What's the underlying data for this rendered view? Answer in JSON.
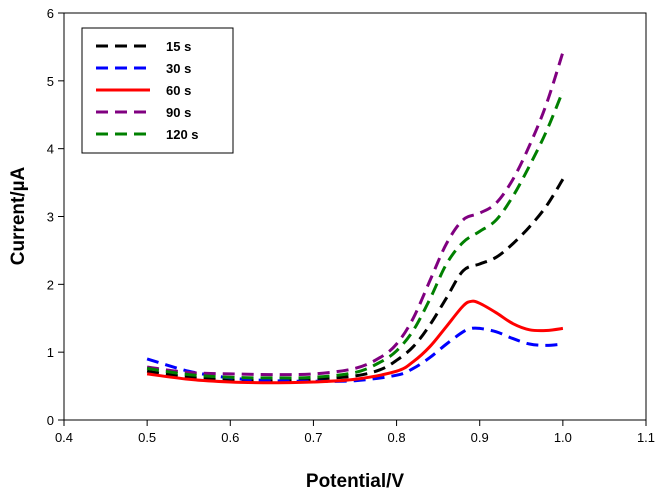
{
  "chart_data": {
    "type": "line",
    "title": "",
    "xlabel": "Potential/V",
    "ylabel": "Current/µA",
    "xlim": [
      0.4,
      1.1
    ],
    "ylim": [
      0,
      6
    ],
    "xticks": [
      "0.4",
      "0.5",
      "0.6",
      "0.7",
      "0.8",
      "0.9",
      "1.0",
      "1.1"
    ],
    "yticks": [
      "0",
      "1",
      "2",
      "3",
      "4",
      "5",
      "6"
    ],
    "grid": false,
    "legend_position": "top-left",
    "series": [
      {
        "name": "15 s",
        "color": "#000000",
        "dash": "dashed",
        "x": [
          0.5,
          0.55,
          0.6,
          0.65,
          0.7,
          0.75,
          0.78,
          0.8,
          0.82,
          0.84,
          0.86,
          0.88,
          0.9,
          0.92,
          0.94,
          0.96,
          0.98,
          1.0
        ],
        "y": [
          0.72,
          0.63,
          0.59,
          0.58,
          0.6,
          0.65,
          0.74,
          0.88,
          1.08,
          1.4,
          1.8,
          2.2,
          2.3,
          2.4,
          2.6,
          2.85,
          3.15,
          3.55
        ]
      },
      {
        "name": "30 s",
        "color": "#0000ff",
        "dash": "dashed",
        "x": [
          0.5,
          0.55,
          0.6,
          0.65,
          0.7,
          0.75,
          0.8,
          0.82,
          0.84,
          0.86,
          0.88,
          0.89,
          0.9,
          0.92,
          0.94,
          0.96,
          0.98,
          1.0
        ],
        "y": [
          0.9,
          0.72,
          0.62,
          0.58,
          0.57,
          0.58,
          0.66,
          0.76,
          0.92,
          1.12,
          1.3,
          1.35,
          1.35,
          1.3,
          1.2,
          1.12,
          1.1,
          1.12
        ]
      },
      {
        "name": "60 s",
        "color": "#ff0000",
        "dash": "solid",
        "x": [
          0.5,
          0.55,
          0.6,
          0.65,
          0.7,
          0.75,
          0.8,
          0.82,
          0.84,
          0.86,
          0.88,
          0.89,
          0.9,
          0.92,
          0.94,
          0.96,
          0.98,
          1.0
        ],
        "y": [
          0.68,
          0.6,
          0.56,
          0.55,
          0.56,
          0.6,
          0.72,
          0.86,
          1.08,
          1.38,
          1.68,
          1.75,
          1.72,
          1.58,
          1.42,
          1.33,
          1.32,
          1.35
        ]
      },
      {
        "name": "90 s",
        "color": "#800080",
        "dash": "dashed",
        "x": [
          0.5,
          0.55,
          0.6,
          0.65,
          0.7,
          0.75,
          0.78,
          0.8,
          0.82,
          0.84,
          0.86,
          0.88,
          0.9,
          0.92,
          0.94,
          0.96,
          0.98,
          1.0
        ],
        "y": [
          0.78,
          0.7,
          0.68,
          0.67,
          0.68,
          0.76,
          0.92,
          1.12,
          1.5,
          2.05,
          2.6,
          2.95,
          3.05,
          3.2,
          3.55,
          4.05,
          4.65,
          5.42
        ]
      },
      {
        "name": "120 s",
        "color": "#008000",
        "dash": "dashed",
        "x": [
          0.5,
          0.55,
          0.6,
          0.65,
          0.7,
          0.75,
          0.78,
          0.8,
          0.82,
          0.84,
          0.86,
          0.88,
          0.9,
          0.92,
          0.94,
          0.96,
          0.98,
          1.0
        ],
        "y": [
          0.76,
          0.67,
          0.63,
          0.62,
          0.63,
          0.7,
          0.85,
          1.02,
          1.32,
          1.78,
          2.3,
          2.62,
          2.78,
          2.95,
          3.3,
          3.75,
          4.25,
          4.85
        ]
      }
    ]
  }
}
